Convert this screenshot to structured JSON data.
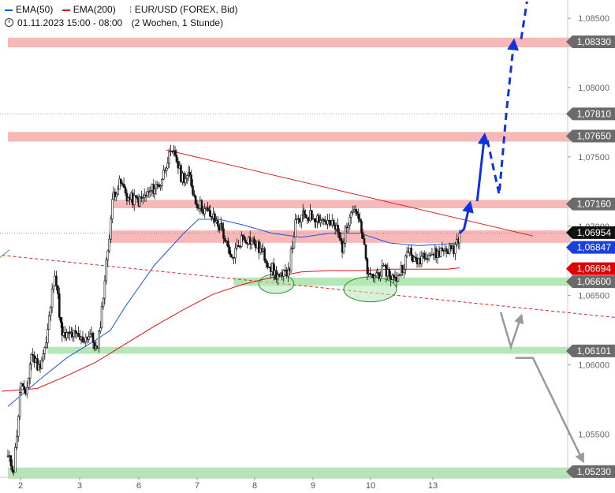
{
  "legend": {
    "ema50_label": "EMA(50)",
    "ema200_label": "EMA(200)",
    "symbol_label": "EUR/USD (FOREX, Bid)",
    "period_label": "01.11.2023 15:00 - 08:00",
    "interval_label": "(2 Wochen, 1 Stunde)",
    "candles_icon": "candlestick-icon",
    "clock_icon": "clock-icon"
  },
  "colors": {
    "ema50": "#2255dd",
    "ema200": "#dd1111",
    "resistance_zone": "#f7b8b8",
    "support_zone": "#b5e6b5",
    "arrow_up": "#1133dd",
    "arrow_down": "#999999",
    "trendline": "#e02020",
    "price_badge": "#111111",
    "ema50_badge": "#1a3fe0",
    "ema200_badge": "#e00000",
    "level_badge": "#6b6b6b"
  },
  "chart_data": {
    "type": "candlestick",
    "title": "",
    "x_ticks": [
      "2",
      "3",
      "6",
      "7",
      "8",
      "9",
      "10",
      "13"
    ],
    "ylim": [
      1.0515,
      1.0862
    ],
    "y_ticks": [
      "1,08500",
      "1,08000",
      "1,07500",
      "1,07000",
      "1,06500",
      "1,06000",
      "1,05500"
    ],
    "y_tick_values": [
      1.085,
      1.08,
      1.075,
      1.07,
      1.065,
      1.06,
      1.055
    ],
    "price_axis_labels": [
      {
        "text": "1,08330",
        "value": 1.0833,
        "kind": "level"
      },
      {
        "text": "1,07810",
        "value": 1.0781,
        "kind": "level"
      },
      {
        "text": "1,07650",
        "value": 1.0765,
        "kind": "level"
      },
      {
        "text": "1,07160",
        "value": 1.0716,
        "kind": "level"
      },
      {
        "text": "1,06954",
        "value": 1.06954,
        "kind": "price"
      },
      {
        "text": "1,06847",
        "value": 1.06847,
        "kind": "ema50"
      },
      {
        "text": "1,06694",
        "value": 1.06694,
        "kind": "ema200"
      },
      {
        "text": "1,06600",
        "value": 1.066,
        "kind": "level"
      },
      {
        "text": "1,06101",
        "value": 1.06101,
        "kind": "level"
      },
      {
        "text": "1,05230",
        "value": 1.0523,
        "kind": "level"
      }
    ],
    "zones": [
      {
        "kind": "resistance",
        "low": 1.0829,
        "high": 1.0836,
        "x_from": 0.0
      },
      {
        "kind": "resistance",
        "low": 1.0761,
        "high": 1.0768,
        "x_from": 0.0
      },
      {
        "kind": "resistance",
        "low": 1.0713,
        "high": 1.0719,
        "x_from": 3.6
      },
      {
        "kind": "resistance",
        "low": 1.0688,
        "high": 1.0697,
        "x_from": 3.45
      },
      {
        "kind": "support",
        "low": 1.0657,
        "high": 1.0663,
        "x_from": 7.7
      },
      {
        "kind": "support",
        "low": 1.0608,
        "high": 1.0613,
        "x_from": 1.35
      },
      {
        "kind": "support",
        "low": 1.0518,
        "high": 1.0526,
        "x_from": 0.0
      }
    ],
    "dotted_levels": [
      1.0781,
      1.0695
    ],
    "trendlines": [
      {
        "style": "solid",
        "from": [
          5.4,
          1.0755
        ],
        "to": [
          17.9,
          1.0693
        ]
      },
      {
        "style": "dashed",
        "from": [
          -0.2,
          1.0679
        ],
        "to": [
          20.8,
          1.0634
        ]
      }
    ],
    "highlight_ellipses": [
      {
        "center": [
          9.15,
          1.06585
        ],
        "rx": 0.6,
        "ry": 0.0007
      },
      {
        "center": [
          12.35,
          1.06545
        ],
        "rx": 0.9,
        "ry": 0.0009
      }
    ],
    "ohlc_anchors": [
      [
        0.0,
        1.0533
      ],
      [
        0.2,
        1.0525
      ],
      [
        0.45,
        1.0588
      ],
      [
        0.6,
        1.0575
      ],
      [
        0.8,
        1.0608
      ],
      [
        1.05,
        1.0598
      ],
      [
        1.3,
        1.0615
      ],
      [
        1.6,
        1.0668
      ],
      [
        1.85,
        1.062
      ],
      [
        2.2,
        1.0622
      ],
      [
        2.5,
        1.0618
      ],
      [
        2.8,
        1.0622
      ],
      [
        3.05,
        1.061
      ],
      [
        3.2,
        1.064
      ],
      [
        3.6,
        1.0724
      ],
      [
        3.85,
        1.0731
      ],
      [
        4.1,
        1.072
      ],
      [
        4.5,
        1.0718
      ],
      [
        5.0,
        1.0728
      ],
      [
        5.2,
        1.0731
      ],
      [
        5.45,
        1.0749
      ],
      [
        5.7,
        1.0752
      ],
      [
        5.9,
        1.0736
      ],
      [
        6.2,
        1.0735
      ],
      [
        6.4,
        1.0718
      ],
      [
        6.9,
        1.0708
      ],
      [
        7.3,
        1.0698
      ],
      [
        7.6,
        1.0675
      ],
      [
        8.0,
        1.0693
      ],
      [
        8.4,
        1.0688
      ],
      [
        8.7,
        1.068
      ],
      [
        9.1,
        1.0666
      ],
      [
        9.35,
        1.0662
      ],
      [
        9.6,
        1.0672
      ],
      [
        9.8,
        1.0701
      ],
      [
        10.1,
        1.0708
      ],
      [
        10.5,
        1.0707
      ],
      [
        10.9,
        1.0703
      ],
      [
        11.2,
        1.0698
      ],
      [
        11.4,
        1.0685
      ],
      [
        11.7,
        1.0714
      ],
      [
        11.9,
        1.0711
      ],
      [
        12.1,
        1.069
      ],
      [
        12.3,
        1.0662
      ],
      [
        12.6,
        1.0666
      ],
      [
        12.9,
        1.0668
      ],
      [
        13.2,
        1.0661
      ],
      [
        13.45,
        1.0671
      ],
      [
        13.7,
        1.0683
      ],
      [
        13.9,
        1.0673
      ],
      [
        14.2,
        1.0681
      ],
      [
        14.6,
        1.068
      ],
      [
        14.9,
        1.0684
      ],
      [
        15.2,
        1.0683
      ],
      [
        15.4,
        1.0695
      ]
    ],
    "ema50": [
      [
        0.0,
        1.057
      ],
      [
        1.0,
        1.0588
      ],
      [
        2.0,
        1.0605
      ],
      [
        3.0,
        1.0618
      ],
      [
        3.5,
        1.0625
      ],
      [
        4.0,
        1.0642
      ],
      [
        5.0,
        1.0672
      ],
      [
        6.0,
        1.0695
      ],
      [
        6.5,
        1.0705
      ],
      [
        7.2,
        1.0705
      ],
      [
        8.0,
        1.0701
      ],
      [
        9.0,
        1.0695
      ],
      [
        10.0,
        1.0692
      ],
      [
        11.0,
        1.0695
      ],
      [
        12.0,
        1.0695
      ],
      [
        13.0,
        1.0688
      ],
      [
        14.0,
        1.0686
      ],
      [
        14.8,
        1.0687
      ],
      [
        15.3,
        1.0688
      ]
    ],
    "ema200": [
      [
        -0.2,
        1.0581
      ],
      [
        1.0,
        1.0583
      ],
      [
        2.0,
        1.0592
      ],
      [
        3.0,
        1.0602
      ],
      [
        4.0,
        1.0615
      ],
      [
        5.0,
        1.0628
      ],
      [
        6.0,
        1.064
      ],
      [
        7.0,
        1.0651
      ],
      [
        8.0,
        1.0658
      ],
      [
        9.0,
        1.0663
      ],
      [
        10.0,
        1.0667
      ],
      [
        11.0,
        1.0668
      ],
      [
        12.0,
        1.0668
      ],
      [
        13.0,
        1.0669
      ],
      [
        14.0,
        1.0669
      ],
      [
        15.0,
        1.0669
      ],
      [
        15.4,
        1.067
      ]
    ],
    "scenario_paths": [
      {
        "scenario": "bullish",
        "style": "solid",
        "points": [
          [
            15.4,
            1.0695
          ],
          [
            15.55,
            1.0698
          ],
          [
            15.75,
            1.0716
          ]
        ]
      },
      {
        "scenario": "bullish",
        "style": "solid",
        "points": [
          [
            16.0,
            1.0718
          ],
          [
            16.25,
            1.0765
          ]
        ]
      },
      {
        "scenario": "bullish",
        "style": "dashed",
        "points": [
          [
            16.35,
            1.0762
          ],
          [
            16.75,
            1.0723
          ],
          [
            17.0,
            1.0783
          ],
          [
            17.25,
            1.0833
          ]
        ]
      },
      {
        "scenario": "bullish",
        "style": "dashed",
        "points": [
          [
            17.5,
            1.0835
          ],
          [
            17.7,
            1.0862
          ]
        ]
      },
      {
        "scenario": "bearish",
        "style": "solid",
        "points": [
          [
            16.8,
            1.0638
          ],
          [
            17.15,
            1.0613
          ],
          [
            17.5,
            1.0635
          ]
        ]
      },
      {
        "scenario": "bearish",
        "style": "solid",
        "points": [
          [
            17.3,
            1.0605
          ],
          [
            17.9,
            1.0605
          ],
          [
            19.6,
            1.0531
          ]
        ]
      }
    ]
  }
}
